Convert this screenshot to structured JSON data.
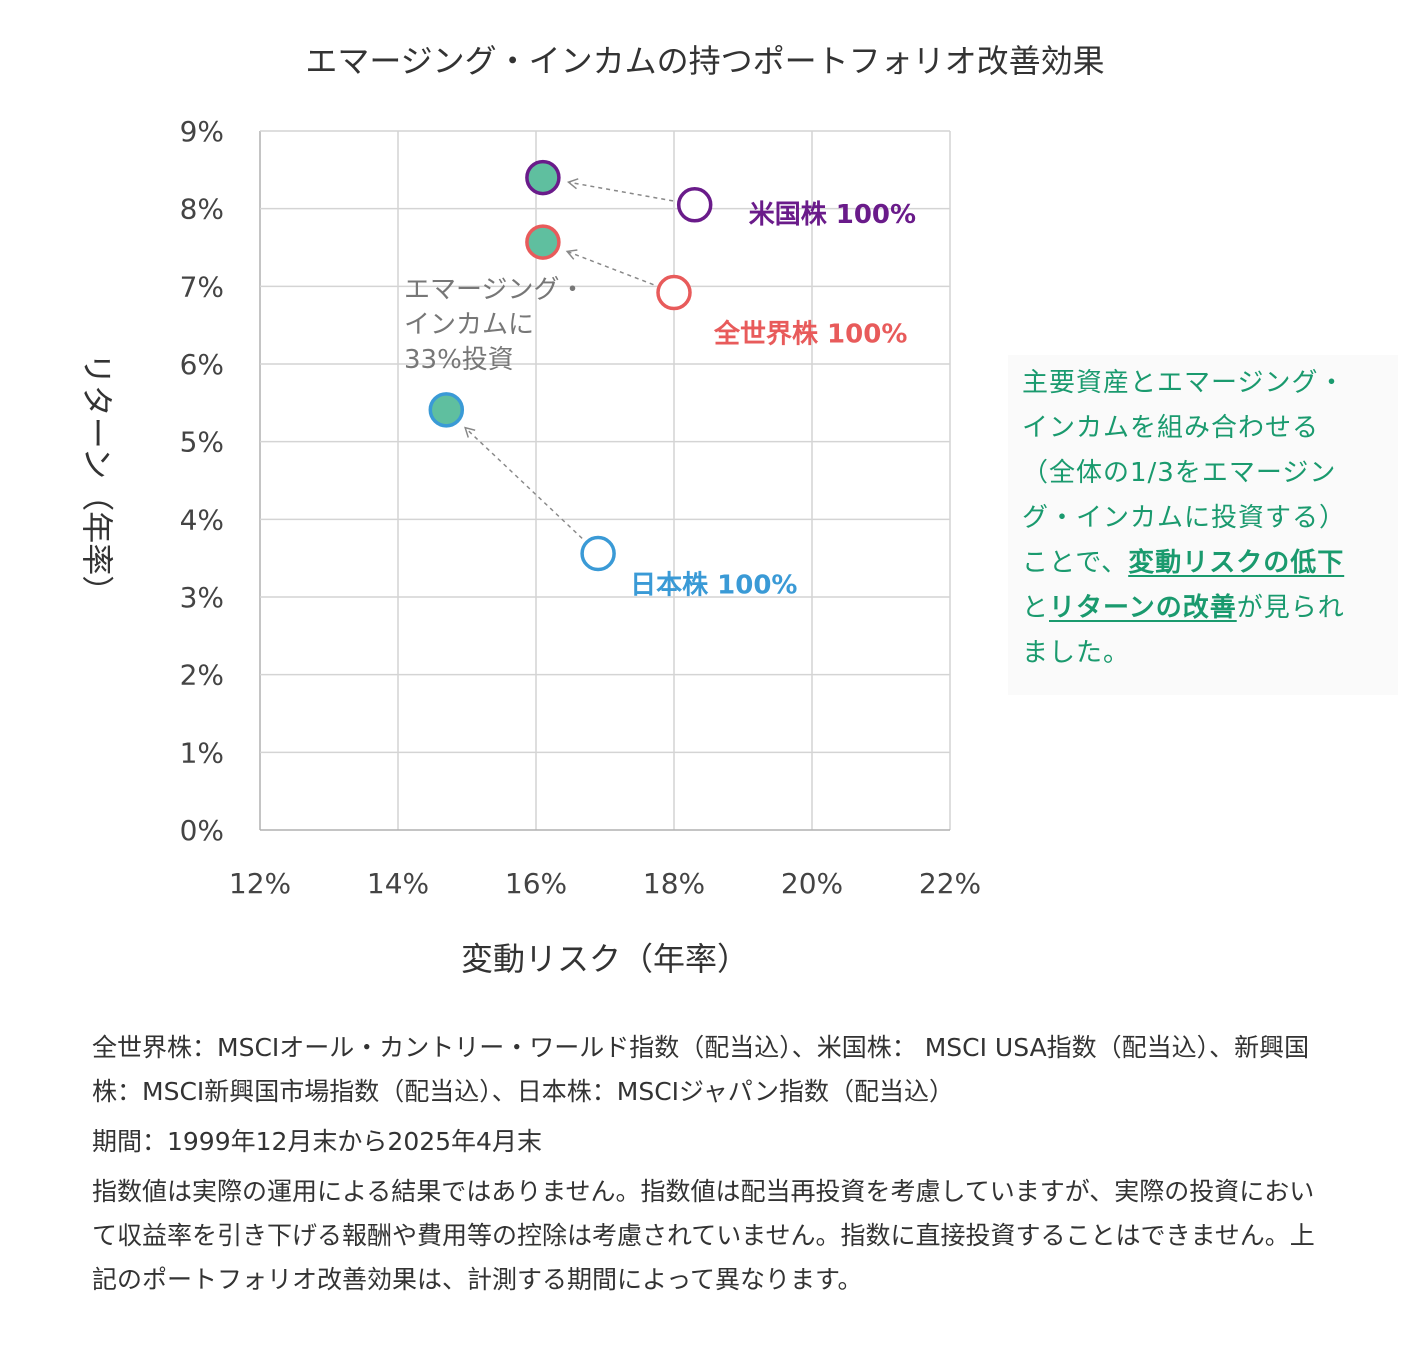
{
  "chart_data": {
    "type": "scatter",
    "title": "エマージング・インカムの持つポートフォリオ改善効果",
    "xlabel": "変動リスク（年率）",
    "ylabel": "リターン（年率）",
    "xlim": [
      0.12,
      0.22
    ],
    "ylim": [
      0,
      0.09
    ],
    "x_ticks": [
      "12%",
      "14%",
      "16%",
      "18%",
      "20%",
      "22%"
    ],
    "y_ticks": [
      "0%",
      "1%",
      "2%",
      "3%",
      "4%",
      "5%",
      "6%",
      "7%",
      "8%",
      "9%"
    ],
    "x_tick_values": [
      0.12,
      0.14,
      0.16,
      0.18,
      0.2,
      0.22
    ],
    "y_tick_values": [
      0,
      0.01,
      0.02,
      0.03,
      0.04,
      0.05,
      0.06,
      0.07,
      0.08,
      0.09
    ],
    "grid": true,
    "series": [
      {
        "name": "米国株 100%",
        "color": "#6a1b8a",
        "base": {
          "x": 0.183,
          "y": 0.0805
        },
        "mixed": {
          "x": 0.161,
          "y": 0.084
        }
      },
      {
        "name": "全世界株 100%",
        "color": "#e85b5b",
        "base": {
          "x": 0.18,
          "y": 0.0692
        },
        "mixed": {
          "x": 0.161,
          "y": 0.0757
        }
      },
      {
        "name": "日本株 100%",
        "color": "#3a9ad6",
        "base": {
          "x": 0.169,
          "y": 0.0356
        },
        "mixed": {
          "x": 0.147,
          "y": 0.0541
        }
      }
    ],
    "mixed_fill": "#5fbf9f",
    "annotation": [
      "エマージング・",
      "インカムに",
      "33%投資"
    ]
  },
  "callout": {
    "line1": "主要資産とエマージング・",
    "line2": "インカムを組み合わせる",
    "line3": "（全体の1/3をエマージン",
    "line4": "グ・インカムに投資する）",
    "line5_pre": "ことで、",
    "line5_em": "変動リスクの低下",
    "line6_pre": "と",
    "line6_em": "リターンの改善",
    "line6_post": "が見られ",
    "line7": "ました。"
  },
  "footer": {
    "p1": "全世界株：MSCIオール・カントリー・ワールド指数（配当込）、米国株： MSCI USA指数（配当込）、新興国株：MSCI新興国市場指数（配当込）、日本株：MSCIジャパン指数（配当込）",
    "p2": "期間：1999年12月末から2025年4月末",
    "p3": "指数値は実際の運用による結果ではありません。指数値は配当再投資を考慮していますが、実際の投資において収益率を引き下げる報酬や費用等の控除は考慮されていません。指数に直接投資することはできません。上記のポートフォリオ改善効果は、計測する期間によって異なります。"
  }
}
